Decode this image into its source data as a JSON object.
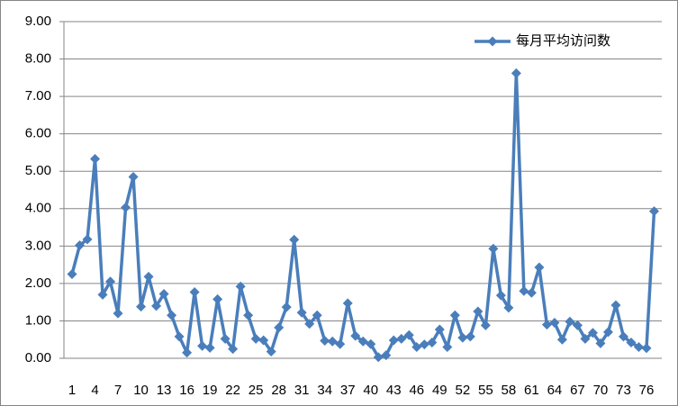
{
  "chart_data": {
    "type": "line",
    "categories": [
      "1",
      null,
      null,
      "4",
      null,
      null,
      "7",
      null,
      null,
      "10",
      null,
      null,
      "13",
      null,
      null,
      "16",
      null,
      null,
      "19",
      null,
      null,
      "22",
      null,
      null,
      "25",
      null,
      null,
      "28",
      null,
      null,
      "31",
      null,
      null,
      "34",
      null,
      null,
      "37",
      null,
      null,
      "40",
      null,
      null,
      "43",
      null,
      null,
      "46",
      null,
      null,
      "49",
      null,
      null,
      "52",
      null,
      null,
      "55",
      null,
      null,
      "58",
      null,
      null,
      "61",
      null,
      null,
      "64",
      null,
      null,
      "67",
      null,
      null,
      "70",
      null,
      null,
      "73",
      null,
      null,
      "76",
      null
    ],
    "series": [
      {
        "name": "每月平均访问数",
        "color": "#4a7ebb",
        "values": [
          2.25,
          3.02,
          3.18,
          5.33,
          1.7,
          2.05,
          1.2,
          4.03,
          4.85,
          1.38,
          2.18,
          1.4,
          1.72,
          1.15,
          0.58,
          0.15,
          1.77,
          0.33,
          0.28,
          1.58,
          0.52,
          0.25,
          1.92,
          1.15,
          0.52,
          0.48,
          0.18,
          0.82,
          1.37,
          3.17,
          1.22,
          0.92,
          1.15,
          0.47,
          0.45,
          0.38,
          1.47,
          0.6,
          0.45,
          0.38,
          0.03,
          0.08,
          0.48,
          0.52,
          0.62,
          0.3,
          0.37,
          0.42,
          0.77,
          0.3,
          1.15,
          0.55,
          0.58,
          1.25,
          0.88,
          2.93,
          1.68,
          1.35,
          7.62,
          1.8,
          1.75,
          2.43,
          0.9,
          0.95,
          0.5,
          0.98,
          0.88,
          0.52,
          0.68,
          0.4,
          0.7,
          1.42,
          0.58,
          0.42,
          0.3,
          0.27,
          3.93
        ]
      }
    ],
    "ylim": [
      0,
      9
    ],
    "yticks": [
      {
        "value": 0,
        "label": "0.00"
      },
      {
        "value": 1,
        "label": "1.00"
      },
      {
        "value": 2,
        "label": "2.00"
      },
      {
        "value": 3,
        "label": "3.00"
      },
      {
        "value": 4,
        "label": "4.00"
      },
      {
        "value": 5,
        "label": "5.00"
      },
      {
        "value": 6,
        "label": "6.00"
      },
      {
        "value": 7,
        "label": "7.00"
      },
      {
        "value": 8,
        "label": "8.00"
      },
      {
        "value": 9,
        "label": "9.00"
      }
    ],
    "grid": true,
    "legend": "top-right"
  }
}
